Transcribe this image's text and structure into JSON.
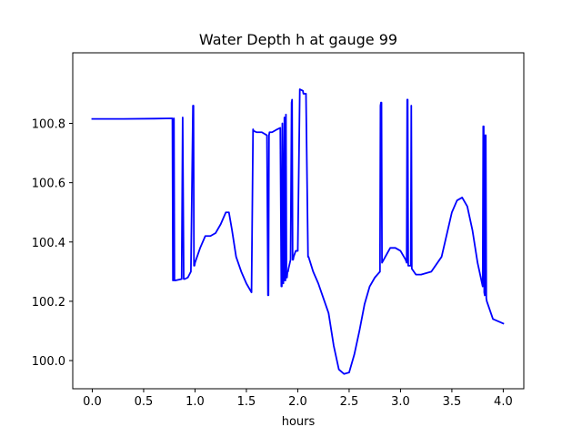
{
  "chart_data": {
    "type": "line",
    "title": "Water Depth h at gauge 99",
    "xlabel": "hours",
    "ylabel": "",
    "xlim": [
      -0.19,
      4.2
    ],
    "ylim": [
      99.905,
      101.038
    ],
    "xticks": [
      0.0,
      0.5,
      1.0,
      1.5,
      2.0,
      2.5,
      3.0,
      3.5,
      4.0
    ],
    "xtick_labels": [
      "0.0",
      "0.5",
      "1.0",
      "1.5",
      "2.0",
      "2.5",
      "3.0",
      "3.5",
      "4.0"
    ],
    "yticks": [
      100.0,
      100.2,
      100.4,
      100.6,
      100.8
    ],
    "ytick_labels": [
      "100.0",
      "100.2",
      "100.4",
      "100.6",
      "100.8"
    ],
    "grid": false,
    "series": [
      {
        "color": "#0000ff",
        "x": [
          0.0,
          0.3,
          0.6,
          0.78,
          0.785,
          0.795,
          0.8,
          0.805,
          0.87,
          0.88,
          0.89,
          0.9,
          0.93,
          0.96,
          0.98,
          0.985,
          0.99,
          0.995,
          1.0,
          1.05,
          1.1,
          1.15,
          1.2,
          1.25,
          1.3,
          1.33,
          1.36,
          1.4,
          1.45,
          1.5,
          1.55,
          1.565,
          1.57,
          1.6,
          1.65,
          1.7,
          1.71,
          1.715,
          1.72,
          1.725,
          1.73,
          1.75,
          1.8,
          1.83,
          1.84,
          1.845,
          1.85,
          1.86,
          1.87,
          1.875,
          1.88,
          1.885,
          1.89,
          1.895,
          1.9,
          1.905,
          1.91,
          1.93,
          1.94,
          1.945,
          1.95,
          1.955,
          1.96,
          1.97,
          1.98,
          1.99,
          2.0,
          2.02,
          2.05,
          2.055,
          2.08,
          2.1,
          2.105,
          2.15,
          2.2,
          2.25,
          2.3,
          2.35,
          2.4,
          2.45,
          2.5,
          2.55,
          2.6,
          2.65,
          2.7,
          2.75,
          2.8,
          2.805,
          2.81,
          2.815,
          2.82,
          2.9,
          2.95,
          3.0,
          3.05,
          3.06,
          3.065,
          3.07,
          3.075,
          3.1,
          3.105,
          3.11,
          3.15,
          3.2,
          3.3,
          3.4,
          3.5,
          3.55,
          3.6,
          3.65,
          3.7,
          3.75,
          3.8,
          3.805,
          3.81,
          3.815,
          3.82,
          3.825,
          3.83,
          3.835,
          3.84,
          3.9,
          4.0
        ],
        "y": [
          100.815,
          100.815,
          100.816,
          100.817,
          100.27,
          100.817,
          100.27,
          100.27,
          100.275,
          100.82,
          100.275,
          100.275,
          100.28,
          100.3,
          100.86,
          100.86,
          100.32,
          100.32,
          100.33,
          100.38,
          100.42,
          100.42,
          100.43,
          100.46,
          100.5,
          100.5,
          100.44,
          100.35,
          100.3,
          100.26,
          100.23,
          100.78,
          100.775,
          100.77,
          100.77,
          100.76,
          100.22,
          100.22,
          100.76,
          100.77,
          100.77,
          100.77,
          100.78,
          100.785,
          100.25,
          100.25,
          100.8,
          100.26,
          100.82,
          100.27,
          100.27,
          100.83,
          100.28,
          100.28,
          100.3,
          100.3,
          100.31,
          100.34,
          100.87,
          100.88,
          100.34,
          100.34,
          100.35,
          100.36,
          100.37,
          100.37,
          100.37,
          100.915,
          100.91,
          100.9,
          100.9,
          100.35,
          100.35,
          100.3,
          100.26,
          100.21,
          100.16,
          100.05,
          99.97,
          99.955,
          99.96,
          100.02,
          100.1,
          100.19,
          100.25,
          100.28,
          100.3,
          100.86,
          100.87,
          100.87,
          100.33,
          100.38,
          100.38,
          100.37,
          100.34,
          100.33,
          100.88,
          100.88,
          100.32,
          100.32,
          100.86,
          100.31,
          100.29,
          100.29,
          100.3,
          100.35,
          100.5,
          100.54,
          100.55,
          100.52,
          100.44,
          100.33,
          100.25,
          100.79,
          100.79,
          100.23,
          100.22,
          100.76,
          100.76,
          100.21,
          100.2,
          100.14,
          100.125
        ]
      }
    ]
  }
}
